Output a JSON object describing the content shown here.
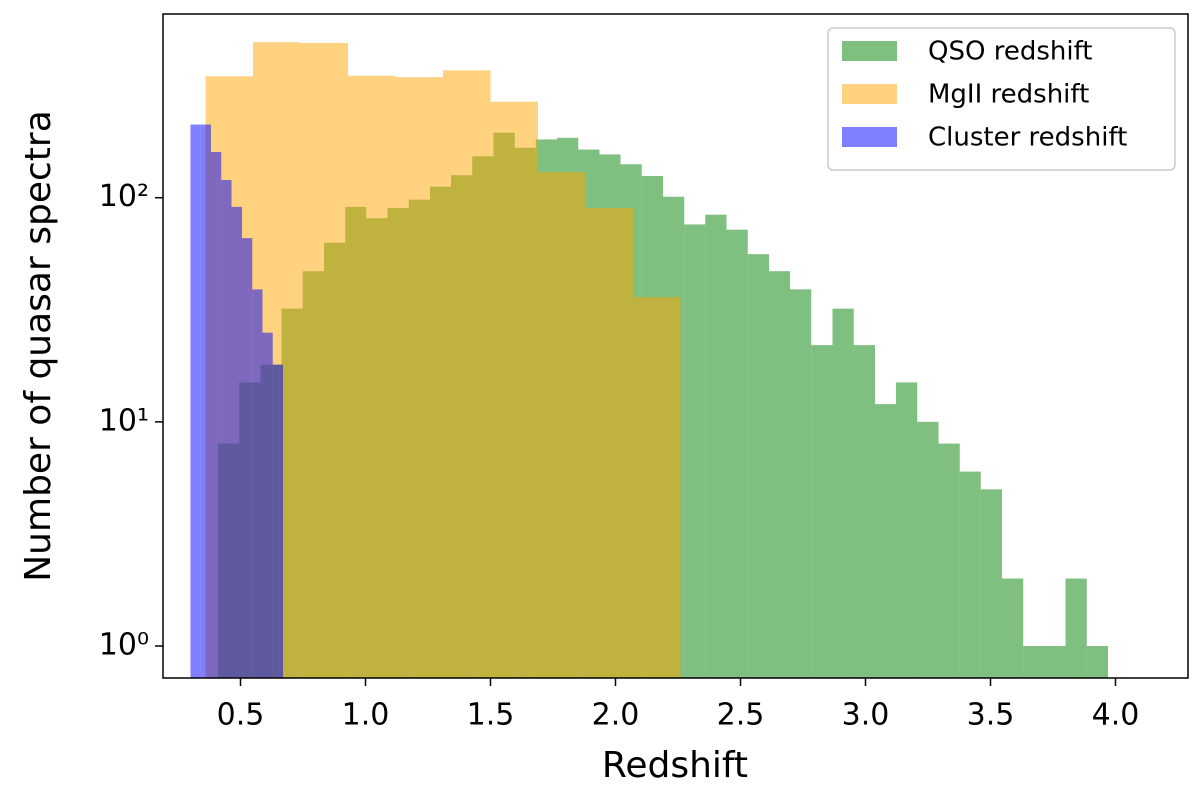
{
  "chart_data": {
    "type": "histogram",
    "xlabel": "Redshift",
    "ylabel": "Number of quasar spectra",
    "log_y": true,
    "legend": "upper right",
    "alpha": 0.5,
    "xlim": [
      0.19,
      4.29
    ],
    "ylim": [
      0.72,
      660
    ],
    "xticks": [
      0.5,
      {
        "value": 1,
        "label": "1.0"
      },
      1.5,
      {
        "value": 2,
        "label": "2.0"
      },
      2.5,
      {
        "value": 3,
        "label": "3.0"
      },
      3.5,
      {
        "value": 4,
        "label": "4.0"
      }
    ],
    "yticks": [
      {
        "value": 1,
        "label": "10⁰"
      },
      {
        "value": 10,
        "label": "10¹"
      },
      {
        "value": 100,
        "label": "10²"
      }
    ],
    "series": [
      {
        "name": "QSO redshift",
        "color": "#008000",
        "bins": [
          0.41,
          0.495,
          0.58,
          0.664,
          0.749,
          0.834,
          0.919,
          1.003,
          1.088,
          1.173,
          1.258,
          1.342,
          1.427,
          1.512,
          1.597,
          1.681,
          1.766,
          1.851,
          1.936,
          2.02,
          2.105,
          2.19,
          2.275,
          2.359,
          2.444,
          2.529,
          2.614,
          2.698,
          2.783,
          2.868,
          2.953,
          3.038,
          3.122,
          3.207,
          3.292,
          3.377,
          3.461,
          3.546,
          3.631,
          3.716,
          3.8,
          3.885,
          3.97
        ],
        "values": [
          8,
          15,
          18,
          32,
          47,
          63,
          91,
          81,
          90,
          98,
          112,
          126,
          153,
          195,
          167,
          182,
          185,
          164,
          156,
          141,
          125,
          101,
          76,
          84,
          72,
          56,
          47,
          39,
          22,
          32,
          22,
          12,
          15,
          10,
          8,
          6,
          5,
          2,
          1,
          1,
          2,
          1
        ]
      },
      {
        "name": "MgII redshift",
        "color": "#ffa500",
        "bins": [
          0.36,
          0.55,
          0.74,
          0.93,
          1.12,
          1.31,
          1.5,
          1.69,
          1.88,
          2.07,
          2.26
        ],
        "values": [
          348,
          494,
          490,
          350,
          345,
          370,
          268,
          130,
          90,
          36
        ]
      },
      {
        "name": "Cluster redshift",
        "color": "#0000ff",
        "bins": [
          0.3,
          0.341,
          0.382,
          0.423,
          0.464,
          0.506,
          0.547,
          0.588,
          0.629,
          0.67
        ],
        "values": [
          212,
          212,
          160,
          120,
          91,
          66,
          39,
          25,
          18
        ]
      }
    ]
  }
}
